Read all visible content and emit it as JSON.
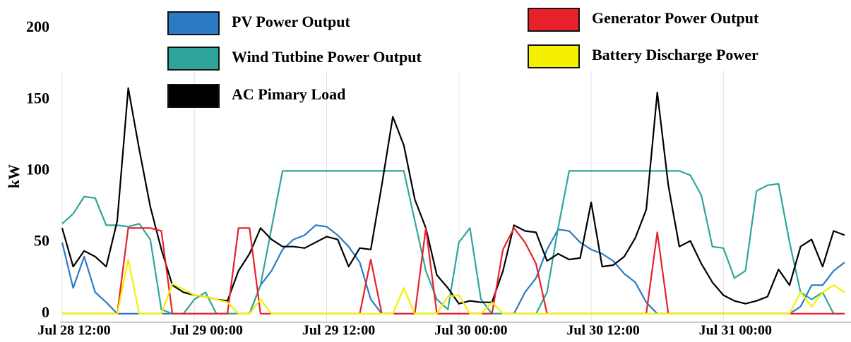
{
  "chart_data": {
    "type": "line",
    "y_label": "kW",
    "x": [
      "Jul 28 12:00",
      "Jul 28 13:00",
      "Jul 28 14:00",
      "Jul 28 15:00",
      "Jul 28 16:00",
      "Jul 28 17:00",
      "Jul 28 18:00",
      "Jul 28 19:00",
      "Jul 28 20:00",
      "Jul 28 21:00",
      "Jul 28 22:00",
      "Jul 28 23:00",
      "Jul 29 00:00",
      "Jul 29 01:00",
      "Jul 29 02:00",
      "Jul 29 03:00",
      "Jul 29 04:00",
      "Jul 29 05:00",
      "Jul 29 06:00",
      "Jul 29 07:00",
      "Jul 29 08:00",
      "Jul 29 09:00",
      "Jul 29 10:00",
      "Jul 29 11:00",
      "Jul 29 12:00",
      "Jul 29 13:00",
      "Jul 29 14:00",
      "Jul 29 15:00",
      "Jul 29 16:00",
      "Jul 29 17:00",
      "Jul 29 18:00",
      "Jul 29 19:00",
      "Jul 29 20:00",
      "Jul 29 21:00",
      "Jul 29 22:00",
      "Jul 29 23:00",
      "Jul 30 00:00",
      "Jul 30 01:00",
      "Jul 30 02:00",
      "Jul 30 03:00",
      "Jul 30 04:00",
      "Jul 30 05:00",
      "Jul 30 06:00",
      "Jul 30 07:00",
      "Jul 30 08:00",
      "Jul 30 09:00",
      "Jul 30 10:00",
      "Jul 30 11:00",
      "Jul 30 12:00",
      "Jul 30 13:00",
      "Jul 30 14:00",
      "Jul 30 15:00",
      "Jul 30 16:00",
      "Jul 30 17:00",
      "Jul 30 18:00",
      "Jul 30 19:00",
      "Jul 30 20:00",
      "Jul 30 21:00",
      "Jul 30 22:00",
      "Jul 30 23:00",
      "Jul 31 00:00",
      "Jul 31 01:00",
      "Jul 31 02:00",
      "Jul 31 03:00",
      "Jul 31 04:00",
      "Jul 31 05:00",
      "Jul 31 06:00",
      "Jul 31 07:00",
      "Jul 31 08:00",
      "Jul 31 09:00",
      "Jul 31 10:00",
      "Jul 31 11:00"
    ],
    "xticks": [
      "Jul 28 12:00",
      "Jul 29 00:00",
      "Jul 29 12:00",
      "Jul 30 00:00",
      "Jul 30 12:00",
      "Jul 31 00:00"
    ],
    "ylim": [
      -5,
      200
    ],
    "yticks": [
      0,
      50,
      100,
      150,
      200
    ],
    "grid": true,
    "series": [
      {
        "name": "PV Power Output",
        "color": "#2b7bc4",
        "values": [
          50,
          18,
          40,
          15,
          8,
          0,
          0,
          0,
          0,
          0,
          0,
          0,
          0,
          0,
          0,
          0,
          0,
          0,
          20,
          30,
          45,
          52,
          55,
          62,
          61,
          55,
          47,
          36,
          10,
          0,
          0,
          0,
          0,
          0,
          0,
          0,
          0,
          0,
          0,
          0,
          0,
          0,
          15,
          25,
          45,
          59,
          58,
          50,
          45,
          42,
          37,
          28,
          22,
          8,
          0,
          0,
          0,
          0,
          0,
          0,
          0,
          0,
          0,
          0,
          0,
          0,
          0,
          5,
          20,
          20,
          30,
          36
        ]
      },
      {
        "name": "Wind Tutbine Power Output",
        "color": "#2ea59a",
        "values": [
          63,
          70,
          82,
          81,
          62,
          62,
          61,
          63,
          52,
          3,
          0,
          0,
          10,
          15,
          0,
          0,
          0,
          0,
          20,
          60,
          100,
          100,
          100,
          100,
          100,
          100,
          100,
          100,
          100,
          100,
          100,
          100,
          65,
          30,
          10,
          3,
          50,
          60,
          10,
          0,
          0,
          0,
          0,
          0,
          15,
          60,
          100,
          100,
          100,
          100,
          100,
          100,
          100,
          100,
          100,
          100,
          100,
          97,
          83,
          47,
          46,
          25,
          30,
          86,
          90,
          91,
          50,
          15,
          10,
          15,
          0,
          0
        ]
      },
      {
        "name": "AC Pimary Load",
        "color": "#000000",
        "values": [
          60,
          33,
          44,
          40,
          33,
          65,
          158,
          115,
          75,
          45,
          20,
          15,
          13,
          12,
          10,
          9,
          30,
          42,
          60,
          52,
          47,
          47,
          46,
          50,
          54,
          52,
          33,
          46,
          45,
          90,
          138,
          118,
          80,
          60,
          27,
          18,
          7,
          9,
          8,
          8,
          30,
          62,
          58,
          57,
          37,
          42,
          38,
          39,
          78,
          33,
          34,
          40,
          53,
          73,
          155,
          90,
          47,
          51,
          35,
          22,
          13,
          9,
          7,
          9,
          12,
          31,
          20,
          47,
          52,
          33,
          58,
          55
        ]
      },
      {
        "name": "Generator Power Output",
        "color": "#e8202a",
        "values": [
          0,
          0,
          0,
          0,
          0,
          0,
          60,
          60,
          60,
          58,
          0,
          0,
          0,
          0,
          0,
          0,
          60,
          60,
          0,
          0,
          0,
          0,
          0,
          0,
          0,
          0,
          0,
          0,
          38,
          0,
          0,
          0,
          0,
          60,
          0,
          0,
          0,
          0,
          0,
          0,
          45,
          60,
          50,
          35,
          0,
          0,
          0,
          0,
          0,
          0,
          0,
          0,
          0,
          0,
          57,
          0,
          0,
          0,
          0,
          0,
          0,
          0,
          0,
          0,
          0,
          0,
          0,
          0,
          0,
          0,
          0,
          0
        ]
      },
      {
        "name": "Battery Discharge Power",
        "color": "#f5f000",
        "values": [
          0,
          0,
          0,
          0,
          0,
          0,
          38,
          0,
          0,
          0,
          21,
          17,
          13,
          12,
          10,
          8,
          0,
          0,
          10,
          0,
          0,
          0,
          0,
          0,
          0,
          0,
          0,
          0,
          0,
          0,
          0,
          18,
          0,
          0,
          0,
          12,
          13,
          0,
          0,
          8,
          0,
          0,
          0,
          0,
          0,
          0,
          0,
          0,
          0,
          0,
          0,
          0,
          0,
          0,
          0,
          0,
          0,
          0,
          0,
          0,
          0,
          0,
          0,
          0,
          0,
          0,
          0,
          15,
          5,
          15,
          20,
          15
        ]
      }
    ]
  }
}
